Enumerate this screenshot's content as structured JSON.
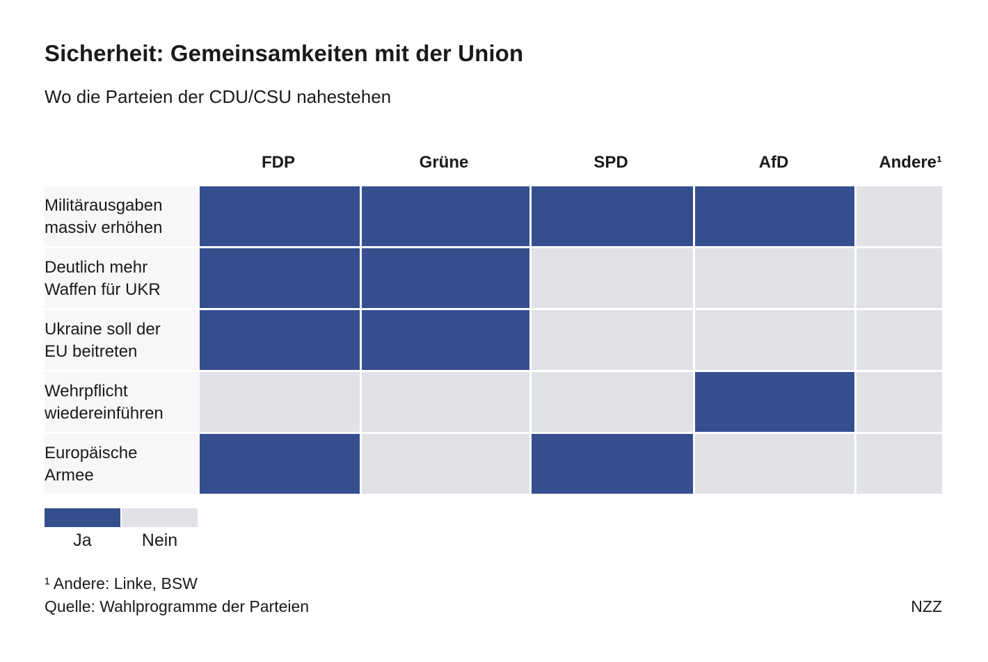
{
  "title": "Sicherheit: Gemeinsamkeiten mit der Union",
  "subtitle": "Wo die Parteien der CDU/CSU nahestehen",
  "colors": {
    "yes": "#354f8e",
    "no": "#e0e2e8"
  },
  "chart_data": {
    "type": "table",
    "columns": [
      "FDP",
      "Grüne",
      "SPD",
      "AfD",
      "Andere¹"
    ],
    "rows": [
      {
        "label_lines": [
          "Militärausgaben",
          "massiv erhöhen"
        ],
        "values": [
          "Ja",
          "Ja",
          "Ja",
          "Ja",
          "Nein"
        ]
      },
      {
        "label_lines": [
          "Deutlich mehr",
          "Waffen für UKR"
        ],
        "values": [
          "Ja",
          "Ja",
          "Nein",
          "Nein",
          "Nein"
        ]
      },
      {
        "label_lines": [
          "Ukraine soll der",
          "EU beitreten"
        ],
        "values": [
          "Ja",
          "Ja",
          "Nein",
          "Nein",
          "Nein"
        ]
      },
      {
        "label_lines": [
          "Wehrpflicht",
          "wiedereinführen"
        ],
        "values": [
          "Nein",
          "Nein",
          "Nein",
          "Ja",
          "Nein"
        ]
      },
      {
        "label_lines": [
          "Europäische",
          "Armee"
        ],
        "values": [
          "Ja",
          "Nein",
          "Ja",
          "Nein",
          "Nein"
        ]
      }
    ],
    "legend": [
      "Ja",
      "Nein"
    ]
  },
  "footnote": "¹ Andere: Linke, BSW",
  "source": "Quelle: Wahlprogramme der Parteien",
  "brand": "NZZ"
}
